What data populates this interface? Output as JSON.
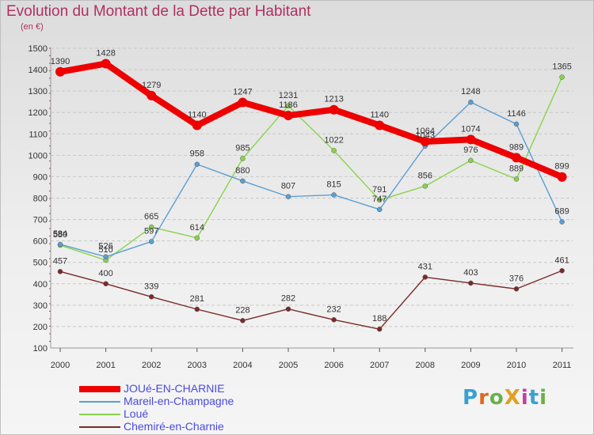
{
  "title": "Evolution du Montant de la Dette par Habitant",
  "unit_label": "(en €)",
  "logo": {
    "text": "ProXiti",
    "letter_colors": [
      "#3aa0d0",
      "#e06a20",
      "#6ab04c",
      "#e0a020",
      "#c040a0",
      "#3aa0d0",
      "#6ab04c"
    ]
  },
  "chart_data": {
    "type": "line",
    "title": "Evolution du Montant de la Dette par Habitant",
    "ylabel": "(en €)",
    "xlabel": "",
    "x": [
      "2000",
      "2001",
      "2002",
      "2003",
      "2004",
      "2005",
      "2006",
      "2007",
      "2008",
      "2009",
      "2010",
      "2011"
    ],
    "ylim": [
      100,
      1500
    ],
    "yticks": [
      100,
      200,
      300,
      400,
      500,
      600,
      700,
      800,
      900,
      1000,
      1100,
      1200,
      1300,
      1400,
      1500
    ],
    "grid": "horizontal-dashed",
    "legend_position": "bottom-left",
    "series": [
      {
        "name": "JOUé-EN-CHARNIE",
        "color": "#ee0000",
        "values": [
          1390,
          1428,
          1279,
          1140,
          1247,
          1186,
          1213,
          1140,
          1064,
          1074,
          989,
          899
        ],
        "labels": [
          "1390",
          "1428",
          "1279",
          "1140",
          "1247",
          "1186",
          "1213",
          "1140",
          "1064",
          "1074",
          "989",
          "899"
        ]
      },
      {
        "name": "Mareil-en-Champagne",
        "color": "#5a9fd4",
        "values": [
          584,
          526,
          597,
          958,
          880,
          807,
          815,
          747,
          1043,
          1248,
          1146,
          689
        ],
        "labels": [
          "584",
          "526",
          "597",
          "958",
          "880",
          "807",
          "815",
          "747",
          "1043",
          "1248",
          "1146",
          "689"
        ]
      },
      {
        "name": "Loué",
        "color": "#88d44a",
        "values": [
          580,
          510,
          665,
          614,
          985,
          1231,
          1022,
          791,
          856,
          976,
          889,
          1365
        ],
        "labels": [
          "580",
          "510",
          "665",
          "614",
          "985",
          "1231",
          "1022",
          "791",
          "856",
          "976",
          "889",
          "1365"
        ]
      },
      {
        "name": "Chemiré-en-Charnie",
        "color": "#7a2a2a",
        "values": [
          457,
          400,
          339,
          281,
          228,
          282,
          232,
          188,
          431,
          403,
          376,
          461
        ],
        "labels": [
          "457",
          "400",
          "339",
          "281",
          "228",
          "282",
          "232",
          "188",
          "431",
          "403",
          "376",
          "461"
        ]
      }
    ]
  }
}
